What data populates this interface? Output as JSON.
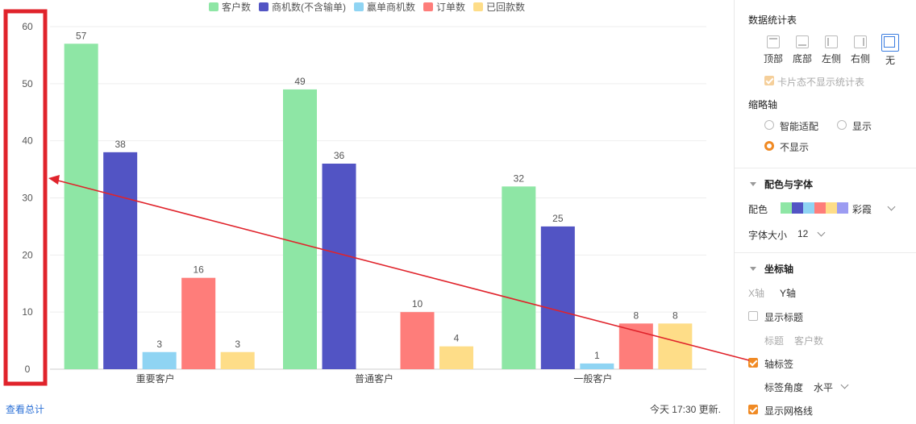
{
  "chart_data": {
    "type": "bar",
    "categories": [
      "重要客户",
      "普通客户",
      "一般客户"
    ],
    "series": [
      {
        "name": "客户数",
        "values": [
          57,
          49,
          32
        ],
        "color": "#8ee6a5"
      },
      {
        "name": "商机数(不含输单)",
        "values": [
          38,
          36,
          25
        ],
        "color": "#5254c4"
      },
      {
        "name": "赢单商机数",
        "values": [
          3,
          0,
          1
        ],
        "color": "#8fd4f3"
      },
      {
        "name": "订单数",
        "values": [
          16,
          10,
          8
        ],
        "color": "#fe7d7a"
      },
      {
        "name": "已回款数",
        "values": [
          3,
          4,
          8
        ],
        "color": "#fedd88"
      }
    ],
    "yticks": [
      "0",
      "10",
      "20",
      "30",
      "40",
      "50",
      "60"
    ],
    "ylim": [
      0,
      60
    ],
    "grid": true,
    "legend": "top-center",
    "title": "",
    "xlabel": "",
    "ylabel": ""
  },
  "footer": {
    "view_total": "查看总计",
    "updated": "今天 17:30 更新."
  },
  "annotation": {
    "color": "#e0232b"
  },
  "panel": {
    "stats_table": {
      "title": "数据统计表",
      "options": [
        {
          "label": "顶部",
          "icon": "table-top-icon"
        },
        {
          "label": "底部",
          "icon": "table-bottom-icon"
        },
        {
          "label": "左侧",
          "icon": "table-left-icon"
        },
        {
          "label": "右侧",
          "icon": "table-right-icon"
        },
        {
          "label": "无",
          "icon": "table-none-icon",
          "selected": true
        }
      ],
      "card_hide": "卡片态不显示统计表"
    },
    "thumb_axis": {
      "title": "缩略轴",
      "smart": "智能适配",
      "show": "显示",
      "hide": "不显示",
      "selected": "不显示"
    },
    "color_font": {
      "title": "配色与字体",
      "palette_label": "配色",
      "palette_name": "彩霞",
      "palette_colors": [
        "#8ee6a5",
        "#5254c4",
        "#8fd4f3",
        "#fe7d7a",
        "#fedd88",
        "#9c9cf2"
      ],
      "font_size_label": "字体大小",
      "font_size_value": "12"
    },
    "axis": {
      "title": "坐标轴",
      "x_tab": "X轴",
      "y_tab": "Y轴",
      "show_title": "显示标题",
      "title_label": "标题",
      "title_placeholder": "客户数",
      "axis_label": "轴标签",
      "label_angle_label": "标签角度",
      "label_angle_value": "水平",
      "show_grid": "显示网格线"
    }
  }
}
